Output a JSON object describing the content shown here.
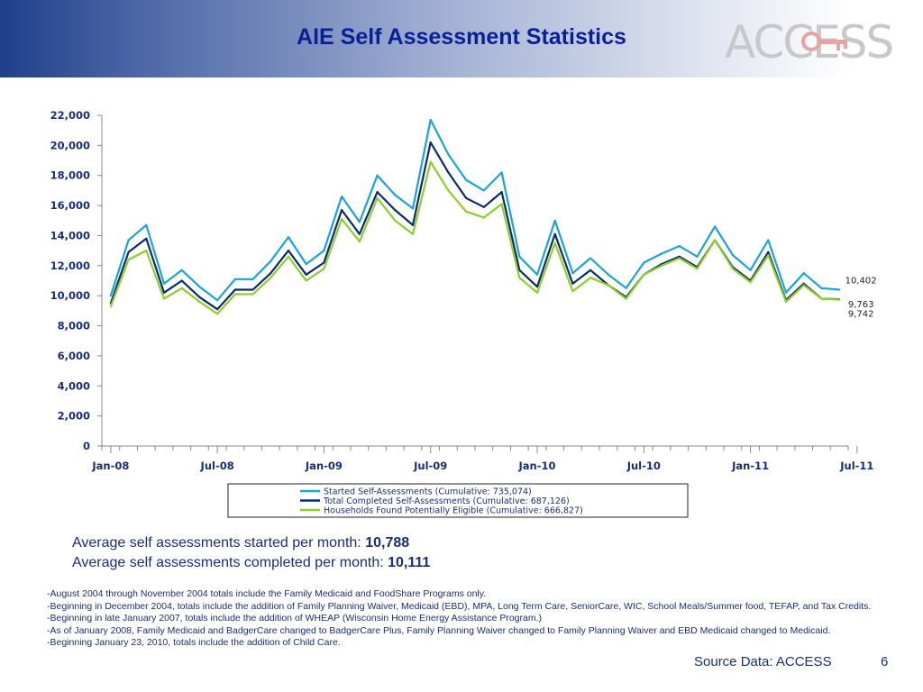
{
  "header": {
    "title": "AIE Self Assessment Statistics",
    "logo_text": "ACCESS"
  },
  "chart_data": {
    "type": "line",
    "x": [
      "Jan-08",
      "Feb-08",
      "Mar-08",
      "Apr-08",
      "May-08",
      "Jun-08",
      "Jul-08",
      "Aug-08",
      "Sep-08",
      "Oct-08",
      "Nov-08",
      "Dec-08",
      "Jan-09",
      "Feb-09",
      "Mar-09",
      "Apr-09",
      "May-09",
      "Jun-09",
      "Jul-09",
      "Aug-09",
      "Sep-09",
      "Oct-09",
      "Nov-09",
      "Dec-09",
      "Jan-10",
      "Feb-10",
      "Mar-10",
      "Apr-10",
      "May-10",
      "Jun-10",
      "Jul-10",
      "Aug-10",
      "Sep-10",
      "Oct-10",
      "Nov-10",
      "Dec-10",
      "Jan-11",
      "Feb-11",
      "Mar-11",
      "Apr-11",
      "May-11",
      "Jun-11"
    ],
    "xticks": [
      "Jan-08",
      "Jul-08",
      "Jan-09",
      "Jul-09",
      "Jan-10",
      "Jul-10",
      "Jan-11",
      "Jul-11"
    ],
    "yticks": [
      "0",
      "2,000",
      "4,000",
      "6,000",
      "8,000",
      "10,000",
      "12,000",
      "14,000",
      "16,000",
      "18,000",
      "20,000",
      "22,000"
    ],
    "ylim": [
      0,
      22000
    ],
    "series": [
      {
        "name": "Started Self-Assessments (Cumulative: 735,074)",
        "color": "#1ba3d8",
        "values": [
          10000,
          13700,
          14700,
          10800,
          11700,
          10600,
          9700,
          11100,
          11100,
          12300,
          13900,
          12100,
          13000,
          16600,
          14900,
          18000,
          16700,
          15800,
          21700,
          19400,
          17700,
          17000,
          18200,
          12600,
          11400,
          15000,
          11500,
          12500,
          11400,
          10500,
          12200,
          12800,
          13300,
          12600,
          14600,
          12700,
          11700,
          13700,
          10200,
          11500,
          10500,
          10402
        ]
      },
      {
        "name": "Total Completed Self-Assessments (Cumulative: 687,126)",
        "color": "#0b2a6e",
        "values": [
          9500,
          12900,
          13800,
          10200,
          11000,
          9900,
          9100,
          10400,
          10400,
          11500,
          13000,
          11400,
          12200,
          15700,
          14100,
          16900,
          15700,
          14700,
          20200,
          18200,
          16500,
          15900,
          16900,
          11700,
          10600,
          14100,
          10800,
          11700,
          10700,
          9900,
          11400,
          12100,
          12600,
          11900,
          13700,
          11900,
          11000,
          12900,
          9700,
          10800,
          9800,
          9763
        ]
      },
      {
        "name": "Households Found Potentially Eligible (Cumulative: 666,827)",
        "color": "#8ccf2a",
        "values": [
          9300,
          12400,
          13000,
          9800,
          10500,
          9600,
          8800,
          10100,
          10100,
          11200,
          12600,
          11000,
          11800,
          15100,
          13600,
          16500,
          15000,
          14100,
          18900,
          17000,
          15600,
          15200,
          16100,
          11200,
          10200,
          13500,
          10300,
          11200,
          10700,
          9800,
          11400,
          12000,
          12500,
          11800,
          13700,
          11800,
          10900,
          12700,
          9600,
          10700,
          9800,
          9742
        ]
      }
    ],
    "end_labels": [
      "10,402",
      "9,763",
      "9,742"
    ],
    "legend": "bottom"
  },
  "stats": {
    "started_label": "Average self assessments started per month: ",
    "started_value": "10,788",
    "completed_label": "Average self assessments completed per month: ",
    "completed_value": "10,111"
  },
  "notes": [
    "-August 2004 through November 2004 totals include the Family Medicaid and FoodShare Programs only.",
    "-Beginning in December 2004, totals include the addition of Family Planning Waiver, Medicaid (EBD), MPA, Long Term Care, SeniorCare, WIC, School Meals/Summer food, TEFAP, and Tax Credits.",
    "-Beginning in late January 2007, totals include the addition of WHEAP (Wisconsin Home Energy Assistance Program.)",
    "-As of January 2008, Family Medicaid and BadgerCare changed to BadgerCare Plus, Family Planning Waiver changed to Family Planning Waiver and EBD Medicaid changed to Medicaid.",
    "-Beginning January 23, 2010, totals include the addition of Child Care."
  ],
  "footer": {
    "source": "Source Data: ACCESS",
    "page": "6"
  }
}
